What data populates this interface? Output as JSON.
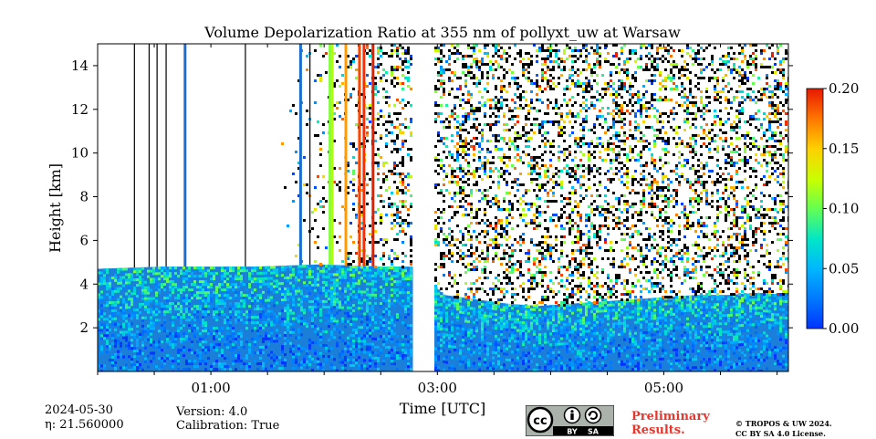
{
  "chart_data": {
    "type": "heatmap",
    "title": "Volume Depolarization Ratio at 355 nm of pollyxt_uw at Warsaw",
    "xlabel": "Time [UTC]",
    "ylabel": "Height [km]",
    "x_ticks": [
      "01:00",
      "03:00",
      "05:00"
    ],
    "x_tick_hours": [
      1,
      3,
      5
    ],
    "x_minor_tick_hours": [
      0,
      0.5,
      1.5,
      2,
      2.5,
      3.5,
      4,
      4.5,
      5.5,
      6
    ],
    "xlim_hours": [
      0,
      6.1
    ],
    "y_ticks": [
      2,
      4,
      6,
      8,
      10,
      12,
      14
    ],
    "ylim": [
      0,
      15
    ],
    "data_gap_hours": [
      2.78,
      2.97
    ],
    "aerosol_layer_top_km": [
      4.7,
      4.75,
      4.8,
      4.8,
      4.8,
      4.8,
      4.85,
      4.9,
      4.85,
      4.8,
      4.8,
      3.5,
      3.3,
      3.1,
      3.0,
      3.1,
      3.2,
      3.3,
      3.4,
      3.5,
      3.5,
      3.6,
      3.5
    ],
    "colorbar": {
      "min": 0.0,
      "max": 0.2,
      "ticks": [
        "0.00",
        "0.05",
        "0.10",
        "0.15",
        "0.20"
      ],
      "tick_values": [
        0.0,
        0.05,
        0.1,
        0.15,
        0.2
      ],
      "colormap": "jet"
    }
  },
  "meta": {
    "date": "2024-05-30",
    "eta": "η: 21.560000",
    "version": "Version: 4.0",
    "calibration": "Calibration: True"
  },
  "footer": {
    "preliminary_line1": "Preliminary",
    "preliminary_line2": "Results.",
    "copyright_line1": "© TROPOS & UW 2024.",
    "copyright_line2": "CC BY SA 4.0 License.",
    "cc_badge": {
      "by_label": "BY",
      "sa_label": "SA",
      "icons": [
        "cc-icon",
        "person-icon",
        "share-alike-icon"
      ]
    }
  },
  "colors": {
    "preliminary_text": "#e8362c",
    "badge_background": "#aab2ab",
    "badge_bar": "#000000"
  }
}
